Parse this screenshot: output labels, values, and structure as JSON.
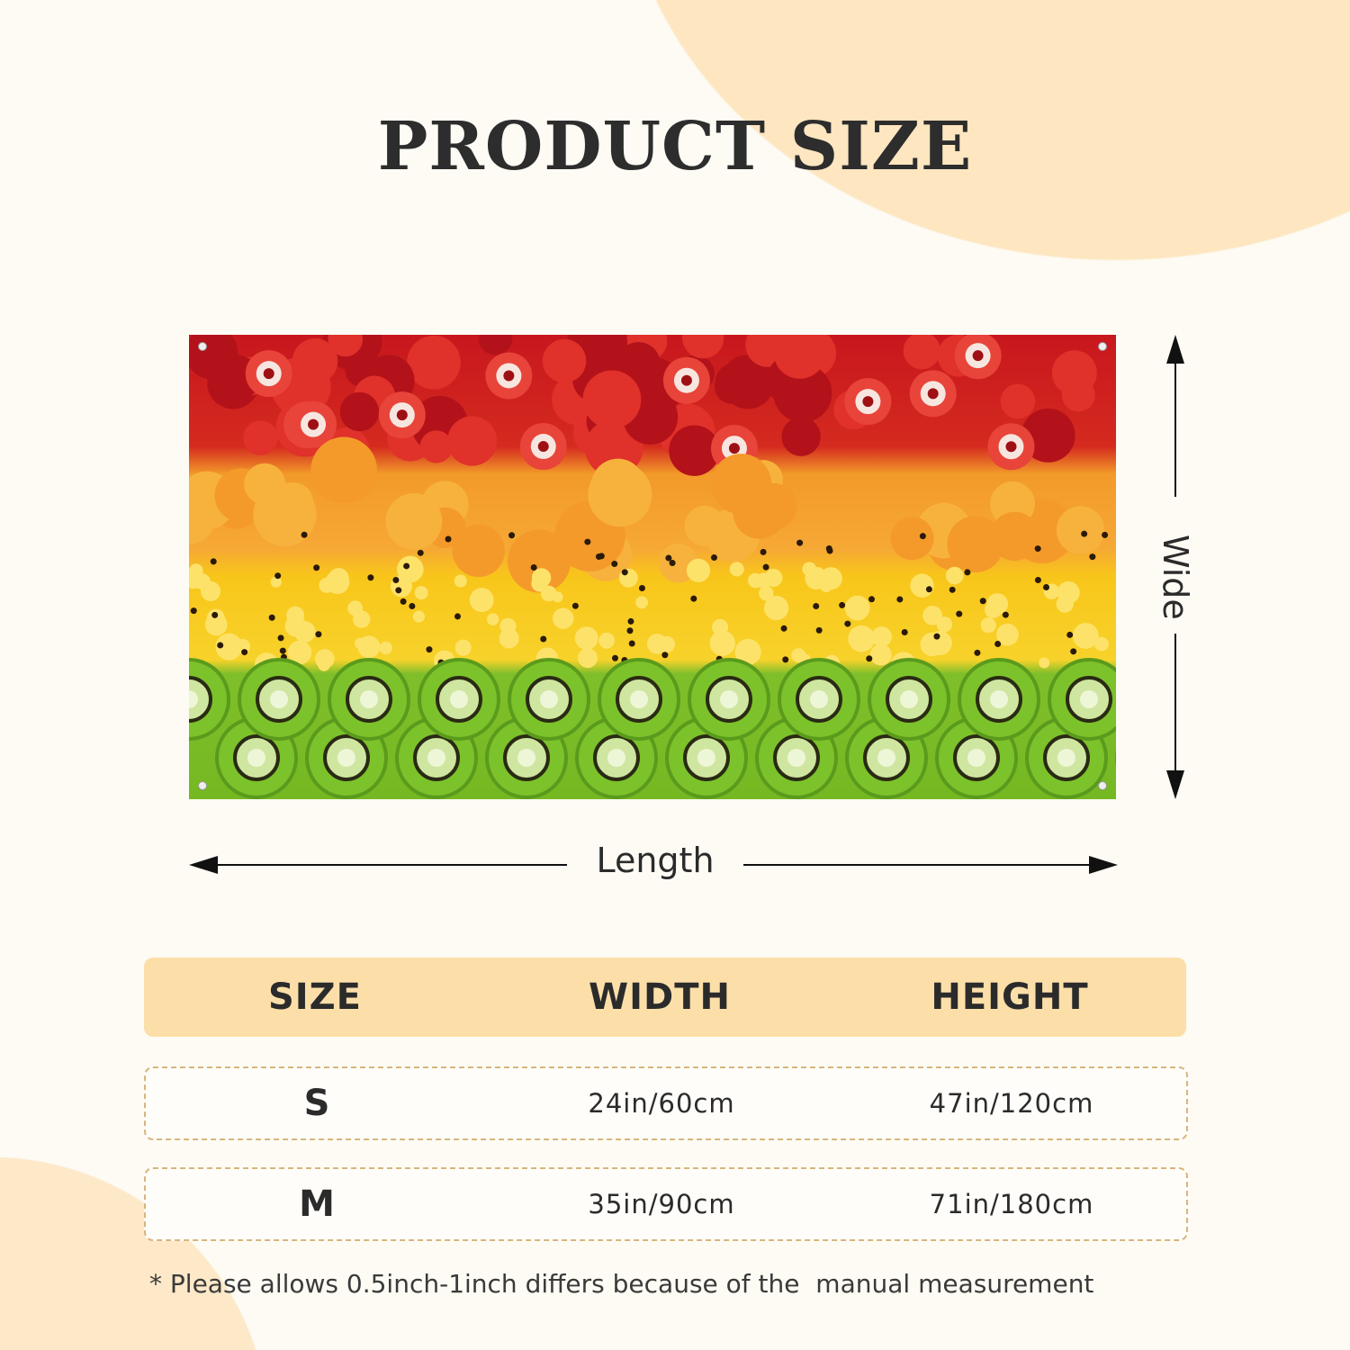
{
  "title": "PRODUCT SIZE",
  "dimension_labels": {
    "height_arrow": "Wide",
    "length_arrow": "Length"
  },
  "table": {
    "headers": [
      "SIZE",
      "WIDTH",
      "HEIGHT"
    ],
    "rows": [
      {
        "size": "S",
        "width": "24in/60cm",
        "height": "47in/120cm"
      },
      {
        "size": "M",
        "width": "35in/90cm",
        "height": "71in/180cm"
      }
    ]
  },
  "footnote": "* Please allows 0.5inch-1inch differs because of the  manual measurement",
  "colors": {
    "background": "#fdfbf4",
    "accent": "#fcdfa8",
    "row_border": "#d8b57c"
  }
}
